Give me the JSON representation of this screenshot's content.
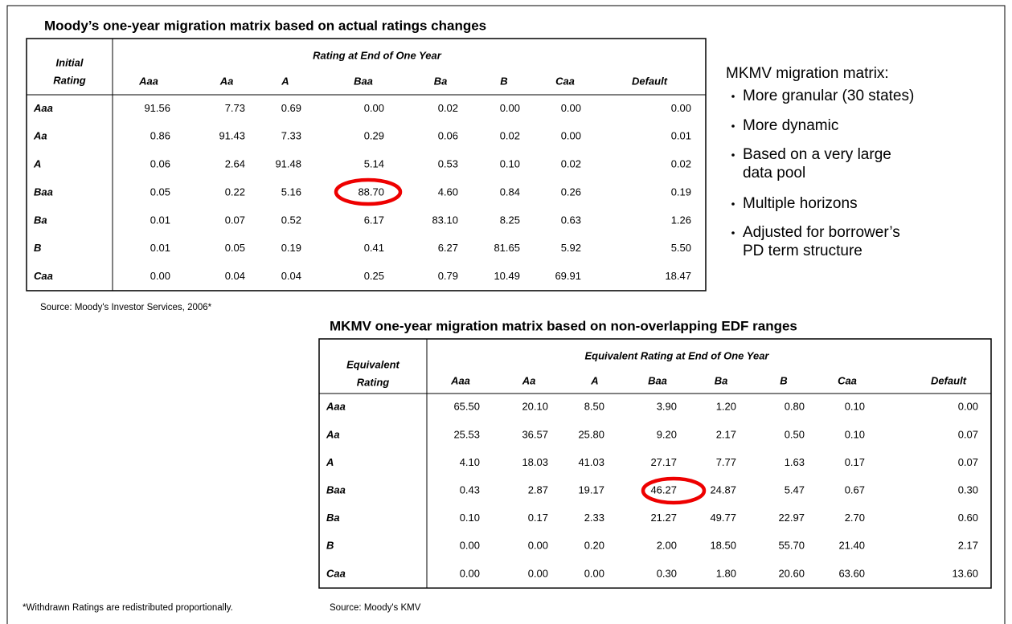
{
  "table1": {
    "title": "Moody’s one-year migration matrix based on actual ratings changes",
    "corner": [
      "Initial",
      "Rating"
    ],
    "group": "Rating at End of One Year",
    "columns": [
      "Aaa",
      "Aa",
      "A",
      "Baa",
      "Ba",
      "B",
      "Caa",
      "Default"
    ],
    "rows": [
      {
        "label": "Aaa",
        "cells": [
          "91.56",
          "7.73",
          "0.69",
          "0.00",
          "0.02",
          "0.00",
          "0.00",
          "0.00"
        ]
      },
      {
        "label": "Aa",
        "cells": [
          "0.86",
          "91.43",
          "7.33",
          "0.29",
          "0.06",
          "0.02",
          "0.00",
          "0.01"
        ]
      },
      {
        "label": "A",
        "cells": [
          "0.06",
          "2.64",
          "91.48",
          "5.14",
          "0.53",
          "0.10",
          "0.02",
          "0.02"
        ]
      },
      {
        "label": "Baa",
        "cells": [
          "0.05",
          "0.22",
          "5.16",
          "88.70",
          "4.60",
          "0.84",
          "0.26",
          "0.19"
        ]
      },
      {
        "label": "Ba",
        "cells": [
          "0.01",
          "0.07",
          "0.52",
          "6.17",
          "83.10",
          "8.25",
          "0.63",
          "1.26"
        ]
      },
      {
        "label": "B",
        "cells": [
          "0.01",
          "0.05",
          "0.19",
          "0.41",
          "6.27",
          "81.65",
          "5.92",
          "5.50"
        ]
      },
      {
        "label": "Caa",
        "cells": [
          "0.00",
          "0.04",
          "0.04",
          "0.25",
          "0.79",
          "10.49",
          "69.91",
          "18.47"
        ]
      }
    ],
    "source": "Source:  Moody's Investor Services, 2006*"
  },
  "table2": {
    "title": "MKMV one-year migration matrix based on non-overlapping EDF ranges",
    "corner": [
      "Equivalent",
      "Rating"
    ],
    "group": "Equivalent Rating at End of One Year",
    "columns": [
      "Aaa",
      "Aa",
      "A",
      "Baa",
      "Ba",
      "B",
      "Caa",
      "Default"
    ],
    "rows": [
      {
        "label": "Aaa",
        "cells": [
          "65.50",
          "20.10",
          "8.50",
          "3.90",
          "1.20",
          "0.80",
          "0.10",
          "0.00"
        ]
      },
      {
        "label": "Aa",
        "cells": [
          "25.53",
          "36.57",
          "25.80",
          "9.20",
          "2.17",
          "0.50",
          "0.10",
          "0.07"
        ]
      },
      {
        "label": "A",
        "cells": [
          "4.10",
          "18.03",
          "41.03",
          "27.17",
          "7.77",
          "1.63",
          "0.17",
          "0.07"
        ]
      },
      {
        "label": "Baa",
        "cells": [
          "0.43",
          "2.87",
          "19.17",
          "46.27",
          "24.87",
          "5.47",
          "0.67",
          "0.30"
        ]
      },
      {
        "label": "Ba",
        "cells": [
          "0.10",
          "0.17",
          "2.33",
          "21.27",
          "49.77",
          "22.97",
          "2.70",
          "0.60"
        ]
      },
      {
        "label": "B",
        "cells": [
          "0.00",
          "0.00",
          "0.20",
          "2.00",
          "18.50",
          "55.70",
          "21.40",
          "2.17"
        ]
      },
      {
        "label": "Caa",
        "cells": [
          "0.00",
          "0.00",
          "0.00",
          "0.30",
          "1.80",
          "20.60",
          "63.60",
          "13.60"
        ]
      }
    ],
    "source": "Source:  Moody's KMV"
  },
  "notes": {
    "heading": "MKMV migration matrix:",
    "bullets": [
      [
        "More granular (30 states)"
      ],
      [
        "More dynamic"
      ],
      [
        "Based on a very large",
        "data pool"
      ],
      [
        "Multiple horizons"
      ],
      [
        "Adjusted for borrower’s",
        "PD term structure"
      ]
    ]
  },
  "footnote": "*Withdrawn Ratings are redistributed proportionally."
}
